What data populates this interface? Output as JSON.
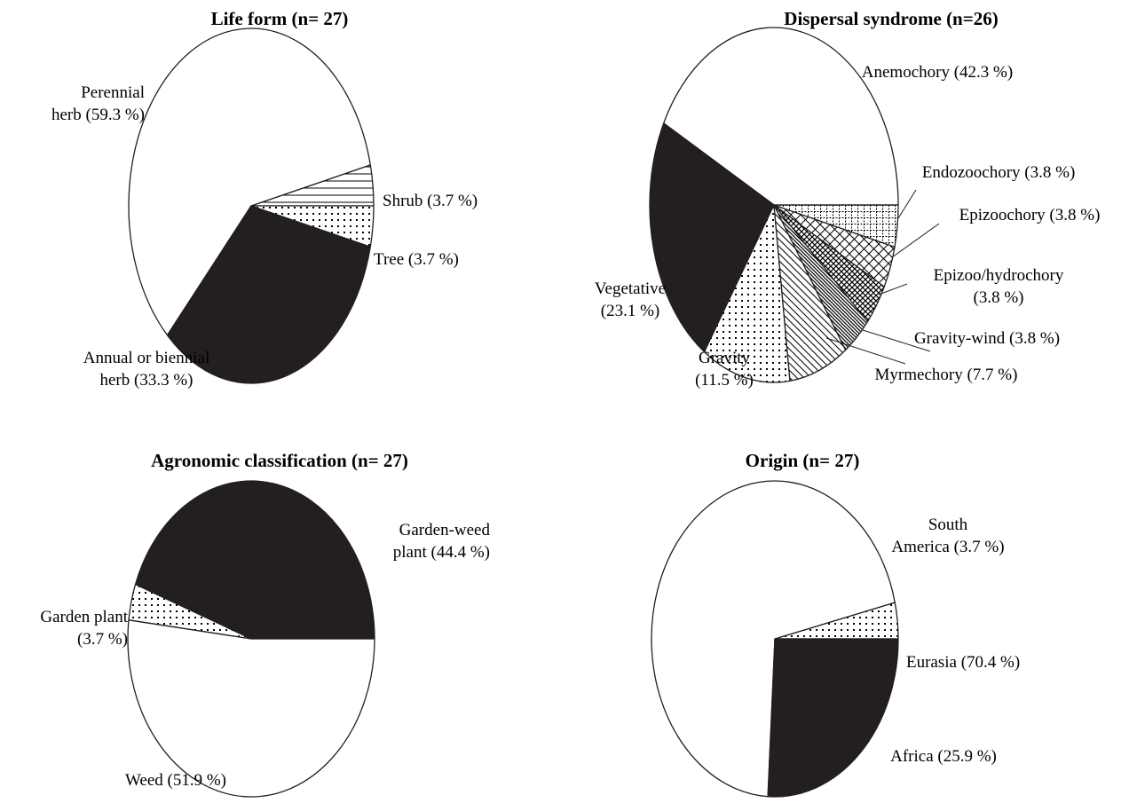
{
  "chart_data": [
    {
      "type": "pie",
      "title": "Life form (n= 27)",
      "slices": [
        {
          "label": [
            "Shrub (3.7 %)"
          ],
          "value": 3.7,
          "pattern": "hlines"
        },
        {
          "label": [
            "Perennial",
            "herb (59.3 %)"
          ],
          "value": 59.3,
          "pattern": "white"
        },
        {
          "label": [
            "Annual or biennial",
            "herb (33.3 %)"
          ],
          "value": 33.3,
          "pattern": "black"
        },
        {
          "label": [
            "Tree (3.7 %)"
          ],
          "value": 3.7,
          "pattern": "dots"
        }
      ]
    },
    {
      "type": "pie",
      "title": "Dispersal syndrome (n=26)",
      "slices": [
        {
          "label": [
            "Anemochory (42.3 %)"
          ],
          "value": 42.3,
          "pattern": "white"
        },
        {
          "label": [
            "Vegetative",
            "(23.1 %)"
          ],
          "value": 23.1,
          "pattern": "black"
        },
        {
          "label": [
            "Gravity",
            "(11.5 %)"
          ],
          "value": 11.5,
          "pattern": "dots"
        },
        {
          "label": [
            "Myrmechory (7.7 %)"
          ],
          "value": 7.7,
          "pattern": "diag"
        },
        {
          "label": [
            "Gravity-wind (3.8 %)"
          ],
          "value": 3.8,
          "pattern": "diagdense"
        },
        {
          "label": [
            "Epizoo/hydrochory",
            "(3.8 %)"
          ],
          "value": 3.8,
          "pattern": "hatch"
        },
        {
          "label": [
            "Epizoochory (3.8 %)"
          ],
          "value": 3.8,
          "pattern": "cross"
        },
        {
          "label": [
            "Endozoochory (3.8 %)"
          ],
          "value": 3.8,
          "pattern": "grid"
        }
      ]
    },
    {
      "type": "pie",
      "title": "Agronomic classification (n= 27)",
      "slices": [
        {
          "label": [
            "Garden-weed",
            "plant (44.4 %)"
          ],
          "value": 44.4,
          "pattern": "black"
        },
        {
          "label": [
            "Garden plant",
            "(3.7 %)"
          ],
          "value": 3.7,
          "pattern": "dots"
        },
        {
          "label": [
            "Weed (51.9 %)"
          ],
          "value": 51.9,
          "pattern": "white"
        }
      ]
    },
    {
      "type": "pie",
      "title": "Origin (n= 27)",
      "slices": [
        {
          "label": [
            "South",
            "America (3.7 %)"
          ],
          "value": 3.7,
          "pattern": "dots"
        },
        {
          "label": [
            "Eurasia (70.4 %)"
          ],
          "value": 70.4,
          "pattern": "white"
        },
        {
          "label": [
            "Africa (25.9 %)"
          ],
          "value": 25.9,
          "pattern": "black"
        }
      ]
    }
  ]
}
